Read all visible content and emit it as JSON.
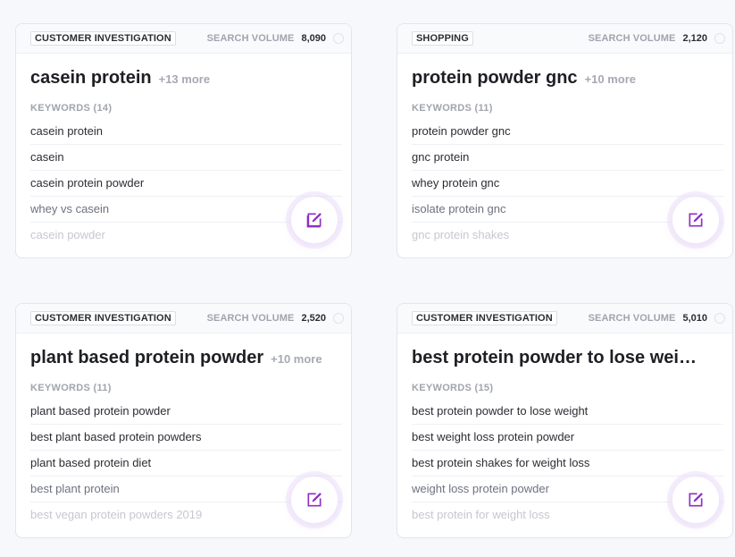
{
  "accent_color": "#8e2fc6",
  "cards": [
    {
      "intent": "CUSTOMER INVESTIGATION",
      "volume_label": "SEARCH VOLUME",
      "volume": "8,090",
      "title": "casein protein",
      "more": "+13 more",
      "keywords_label": "KEYWORDS (14)",
      "keywords": [
        "casein protein",
        "casein",
        "casein protein powder",
        "whey vs casein",
        "casein powder"
      ],
      "edit_icon": "edit-icon"
    },
    {
      "intent": "SHOPPING",
      "volume_label": "SEARCH VOLUME",
      "volume": "2,120",
      "title": "protein powder gnc",
      "more": "+10 more",
      "keywords_label": "KEYWORDS (11)",
      "keywords": [
        "protein powder gnc",
        "gnc protein",
        "whey protein gnc",
        "isolate protein gnc",
        "gnc protein shakes"
      ],
      "edit_icon": "edit-icon"
    },
    {
      "intent": "CUSTOMER INVESTIGATION",
      "volume_label": "SEARCH VOLUME",
      "volume": "2,520",
      "title": "plant based protein powder",
      "more": "+10 more",
      "keywords_label": "KEYWORDS (11)",
      "keywords": [
        "plant based protein powder",
        "best plant based protein powders",
        "plant based protein diet",
        "best plant protein",
        "best vegan protein powders 2019"
      ],
      "edit_icon": "edit-icon"
    },
    {
      "intent": "CUSTOMER INVESTIGATION",
      "volume_label": "SEARCH VOLUME",
      "volume": "5,010",
      "title": "best protein powder to lose weight…",
      "more": "",
      "keywords_label": "KEYWORDS (15)",
      "keywords": [
        "best protein powder to lose weight",
        "best weight loss protein powder",
        "best protein shakes for weight loss",
        "weight loss protein powder",
        "best protein for weight loss"
      ],
      "edit_icon": "edit-icon"
    }
  ]
}
